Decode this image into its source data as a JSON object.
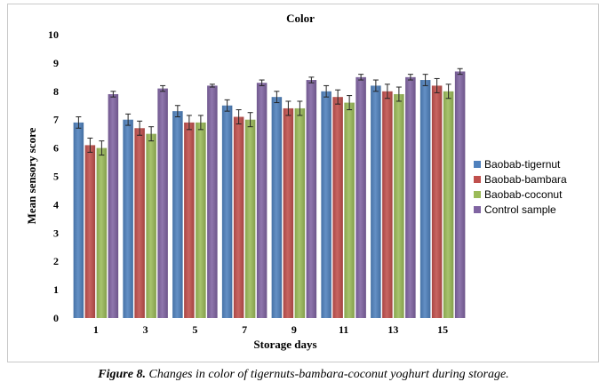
{
  "chart_data": {
    "type": "bar",
    "title": "Color",
    "xlabel": "Storage days",
    "ylabel": "Mean sensory score",
    "categories": [
      "1",
      "3",
      "5",
      "7",
      "9",
      "11",
      "13",
      "15"
    ],
    "ylim": [
      0,
      10
    ],
    "yticks": [
      0,
      1,
      2,
      3,
      4,
      5,
      6,
      7,
      8,
      9,
      10
    ],
    "grid": false,
    "legend_position": "right",
    "error_bars": true,
    "series": [
      {
        "name": "Baobab-tigernut",
        "color": "#4f81bd",
        "values": [
          6.9,
          7.0,
          7.3,
          7.5,
          7.8,
          8.0,
          8.2,
          8.4
        ],
        "errors": [
          0.2,
          0.2,
          0.2,
          0.2,
          0.2,
          0.2,
          0.2,
          0.2
        ]
      },
      {
        "name": "Baobab-bambara",
        "color": "#c0504d",
        "values": [
          6.1,
          6.7,
          6.9,
          7.1,
          7.4,
          7.8,
          8.0,
          8.2
        ],
        "errors": [
          0.25,
          0.25,
          0.25,
          0.25,
          0.25,
          0.25,
          0.25,
          0.25
        ]
      },
      {
        "name": "Baobab-coconut",
        "color": "#9bbb59",
        "values": [
          6.0,
          6.5,
          6.9,
          7.0,
          7.4,
          7.6,
          7.9,
          8.0
        ],
        "errors": [
          0.25,
          0.25,
          0.25,
          0.25,
          0.25,
          0.25,
          0.25,
          0.25
        ]
      },
      {
        "name": "Control sample",
        "color": "#8064a2",
        "values": [
          7.9,
          8.1,
          8.2,
          8.3,
          8.4,
          8.5,
          8.5,
          8.7
        ],
        "errors": [
          0.1,
          0.1,
          0.05,
          0.1,
          0.1,
          0.1,
          0.1,
          0.1
        ]
      }
    ]
  },
  "caption": {
    "lead": "Figure 8.",
    "text": " Changes in color of tigernuts-bambara-coconut yoghurt during storage."
  }
}
